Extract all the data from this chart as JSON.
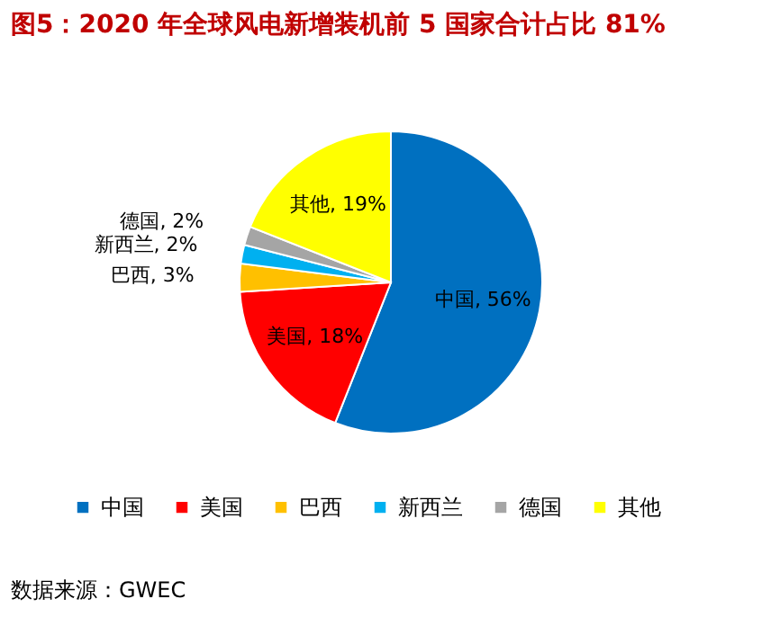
{
  "chart_data": {
    "type": "pie",
    "title": "图5：2020 年全球风电新增装机前 5 国家合计占比 81%",
    "categories": [
      "中国",
      "美国",
      "巴西",
      "新西兰",
      "德国",
      "其他"
    ],
    "values": [
      56,
      18,
      3,
      2,
      2,
      19
    ],
    "colors": [
      "#0070c0",
      "#ff0000",
      "#ffc000",
      "#00b0f0",
      "#a5a5a5",
      "#ffff00"
    ],
    "value_labels": [
      "中国, 56%",
      "美国, 18%",
      "巴西, 3%",
      "新西兰, 2%",
      "德国, 2%",
      "其他, 19%"
    ],
    "legend": "bottom",
    "annotations": [
      "数据来源：GWEC"
    ]
  }
}
